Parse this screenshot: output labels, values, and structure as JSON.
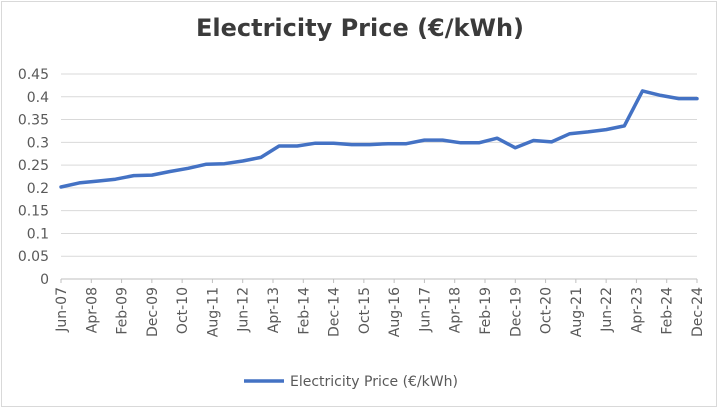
{
  "chart_data": {
    "type": "line",
    "title": "Electricity Price (€/kWh)",
    "xlabel": "",
    "ylabel": "",
    "ylim": [
      0,
      0.45
    ],
    "y_ticks": [
      "0",
      "0.05",
      "0.1",
      "0.15",
      "0.2",
      "0.25",
      "0.3",
      "0.35",
      "0.4",
      "0.45"
    ],
    "y_tick_values": [
      0,
      0.05,
      0.1,
      0.15,
      0.2,
      0.25,
      0.3,
      0.35,
      0.4,
      0.45
    ],
    "x_tick_labels": [
      "Jun-07",
      "Apr-08",
      "Feb-09",
      "Dec-09",
      "Oct-10",
      "Aug-11",
      "Jun-12",
      "Apr-13",
      "Feb-14",
      "Dec-14",
      "Oct-15",
      "Aug-16",
      "Jun-17",
      "Apr-18",
      "Feb-19",
      "Dec-19",
      "Oct-20",
      "Aug-21",
      "Jun-22",
      "Apr-23",
      "Feb-24",
      "Dec-24"
    ],
    "legend": {
      "position": "bottom",
      "label": "Electricity Price (€/kWh)"
    },
    "grid": true,
    "color": "#4472c4",
    "series": [
      {
        "name": "Electricity Price (€/kWh)",
        "x": [
          "Jun-07",
          "Dec-07",
          "Jun-08",
          "Dec-08",
          "Jun-09",
          "Dec-09",
          "Jun-10",
          "Dec-10",
          "Jun-11",
          "Dec-11",
          "Jun-12",
          "Dec-12",
          "Jun-13",
          "Dec-13",
          "Jun-14",
          "Dec-14",
          "Jun-15",
          "Dec-15",
          "Jun-16",
          "Dec-16",
          "Jun-17",
          "Dec-17",
          "Jun-18",
          "Dec-18",
          "Jun-19",
          "Dec-19",
          "Jun-20",
          "Dec-20",
          "Jun-21",
          "Dec-21",
          "Jun-22",
          "Dec-22",
          "Jun-23",
          "Dec-23",
          "Jun-24",
          "Dec-24"
        ],
        "values": [
          0.202,
          0.211,
          0.215,
          0.219,
          0.227,
          0.228,
          0.236,
          0.243,
          0.252,
          0.253,
          0.259,
          0.267,
          0.292,
          0.292,
          0.298,
          0.298,
          0.295,
          0.295,
          0.297,
          0.297,
          0.305,
          0.305,
          0.299,
          0.299,
          0.309,
          0.288,
          0.304,
          0.301,
          0.319,
          0.323,
          0.328,
          0.336,
          0.413,
          0.403,
          0.396,
          0.396
        ]
      }
    ]
  }
}
